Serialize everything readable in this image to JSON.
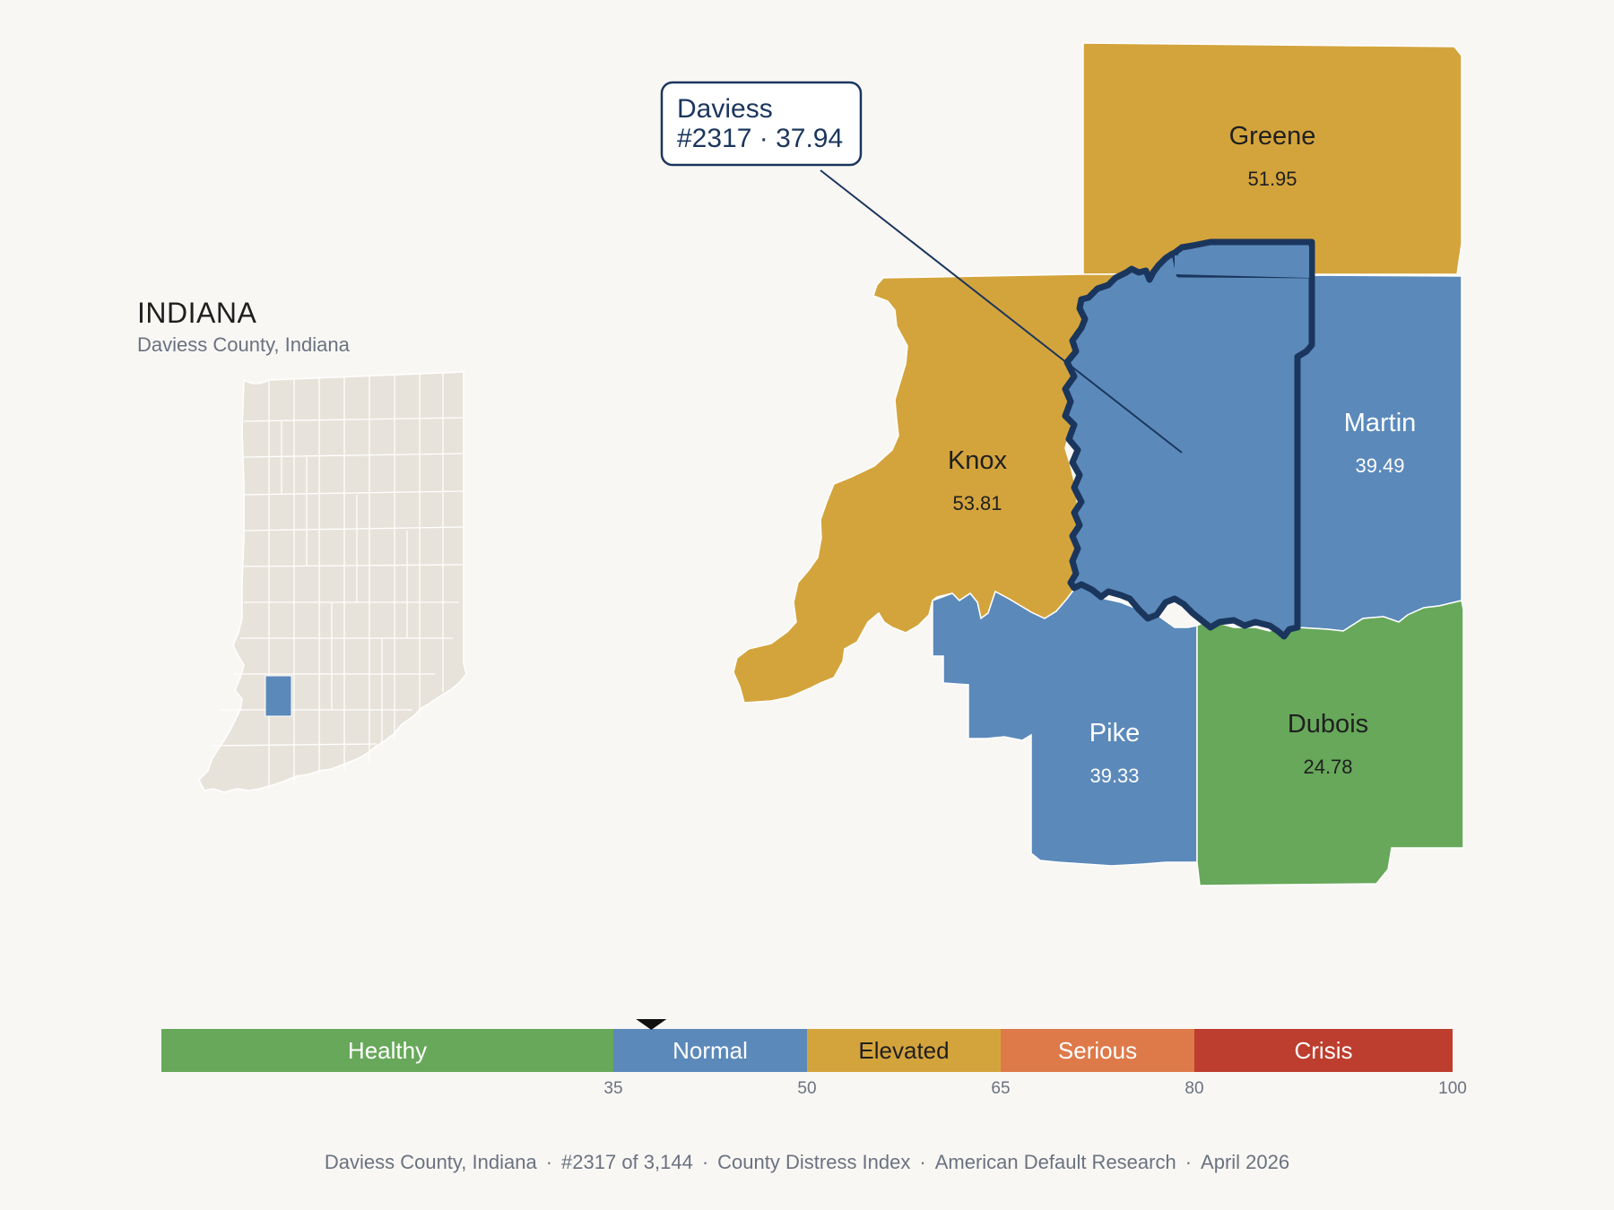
{
  "inset": {
    "state_title": "INDIANA",
    "subtitle": "Daviess County, Indiana"
  },
  "callout": {
    "line1": "Daviess",
    "line2": "#2317 · 37.94"
  },
  "counties": [
    {
      "key": "greene",
      "name": "Greene",
      "score": "51.95",
      "category": "Elevated"
    },
    {
      "key": "knox",
      "name": "Knox",
      "score": "53.81",
      "category": "Elevated"
    },
    {
      "key": "martin",
      "name": "Martin",
      "score": "39.49",
      "category": "Normal"
    },
    {
      "key": "pike",
      "name": "Pike",
      "score": "39.33",
      "category": "Normal"
    },
    {
      "key": "dubois",
      "name": "Dubois",
      "score": "24.78",
      "category": "Healthy"
    },
    {
      "key": "daviess",
      "name": "Daviess",
      "score": "37.94",
      "category": "Normal",
      "highlighted": true
    }
  ],
  "legend": {
    "bands": [
      {
        "label": "Healthy",
        "from": 0,
        "to": 35,
        "color": "#67a85a",
        "text_color": "#ffffff"
      },
      {
        "label": "Normal",
        "from": 35,
        "to": 50,
        "color": "#5b89ba",
        "text_color": "#ffffff"
      },
      {
        "label": "Elevated",
        "from": 50,
        "to": 65,
        "color": "#d4a43c",
        "text_color": "#1f1f1f"
      },
      {
        "label": "Serious",
        "from": 65,
        "to": 80,
        "color": "#de7a4a",
        "text_color": "#ffffff"
      },
      {
        "label": "Crisis",
        "from": 80,
        "to": 100,
        "color": "#bd3e2e",
        "text_color": "#ffffff"
      }
    ],
    "ticks": [
      "35",
      "50",
      "65",
      "80",
      "100"
    ],
    "marker_value": 37.94,
    "min": 0,
    "max": 100
  },
  "colors": {
    "healthy": "#67a85a",
    "normal": "#5b89ba",
    "elevated": "#d4a43c",
    "serious": "#de7a4a",
    "crisis": "#bd3e2e",
    "highlight_outline": "#1b365d",
    "inset_fill": "#e8e3da",
    "background": "#f9f7f4"
  },
  "footer": {
    "county": "Daviess County, Indiana",
    "rank": "#2317 of 3,144",
    "index": "County Distress Index",
    "org": "American Default Research",
    "date": "April 2026"
  }
}
